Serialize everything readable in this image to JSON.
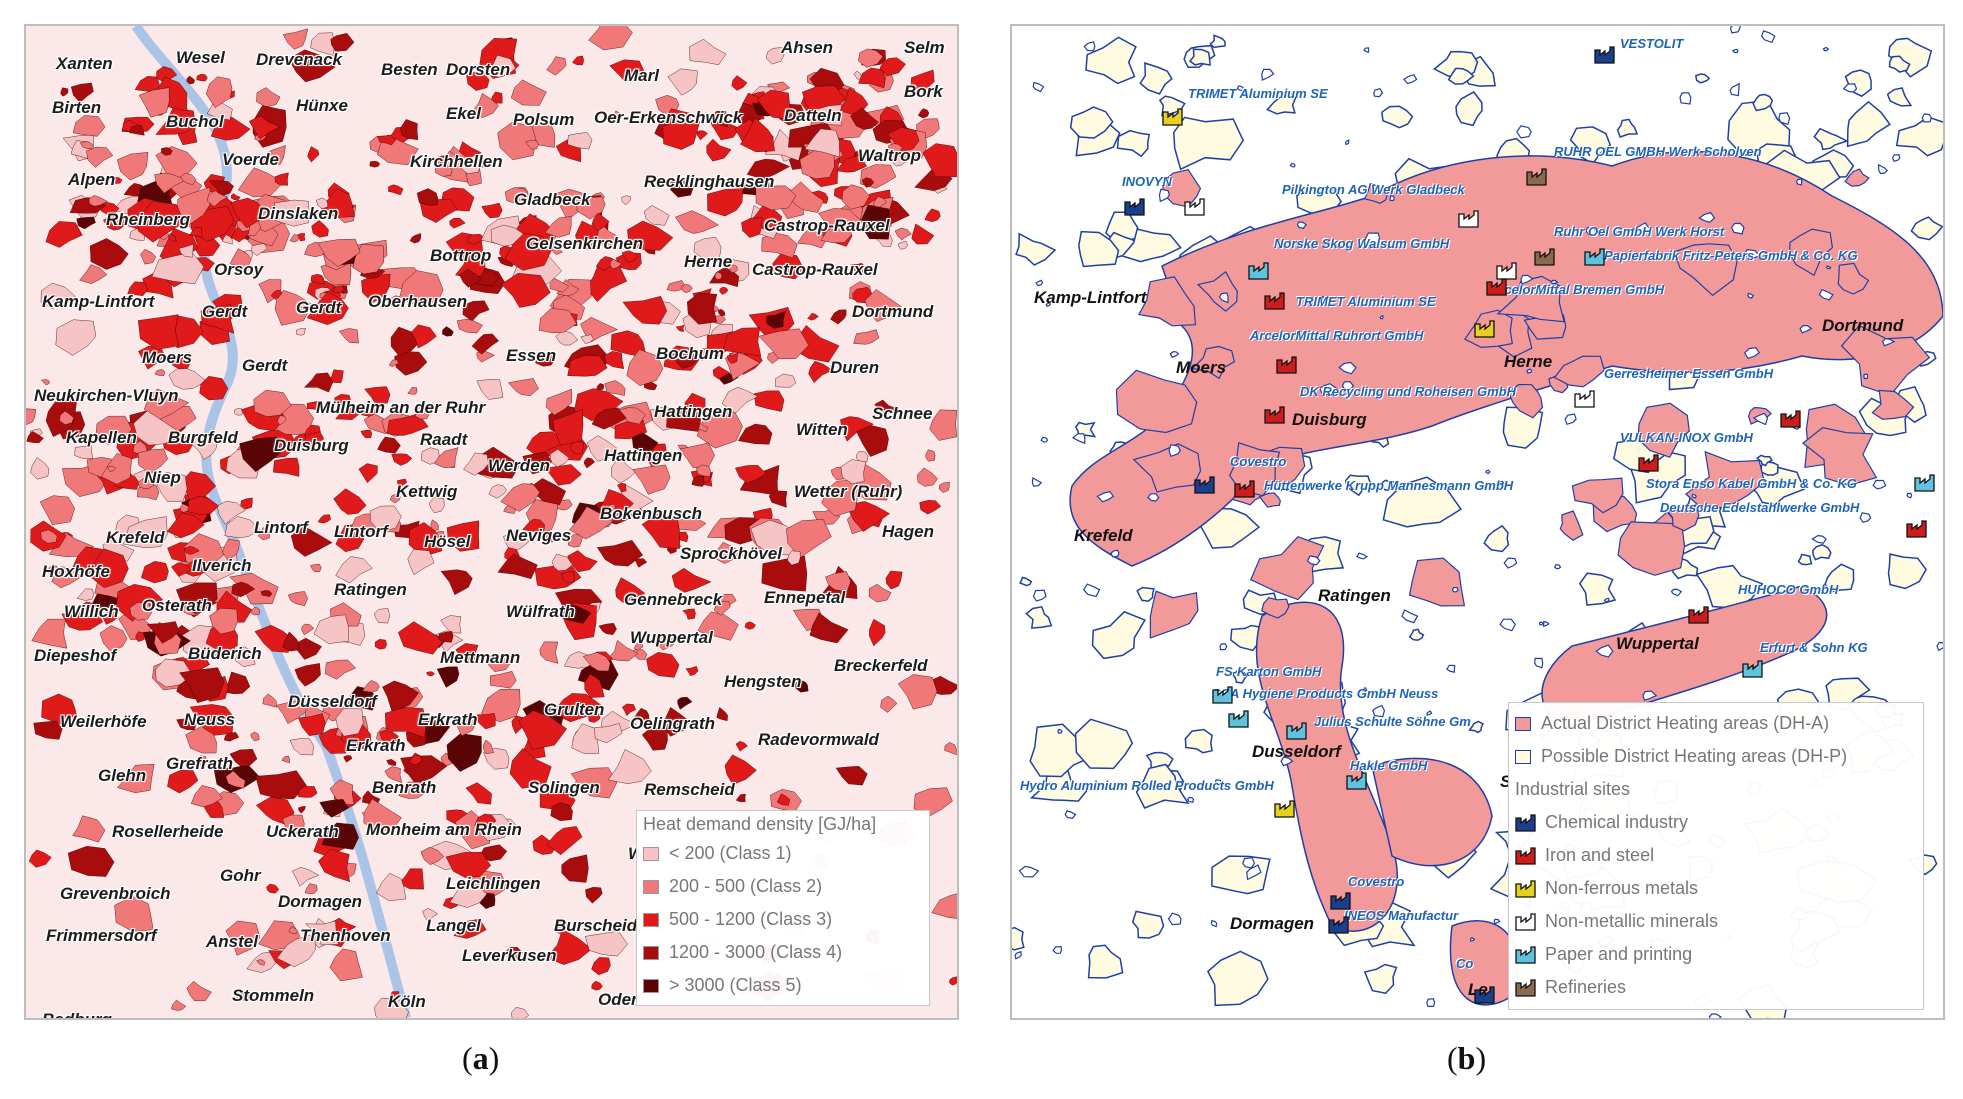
{
  "panel_a": {
    "caption_prefix": "(",
    "caption_letter": "a",
    "caption_suffix": ")",
    "places": [
      [
        "Xanten",
        30,
        28
      ],
      [
        "Wesel",
        150,
        22
      ],
      [
        "Drevenack",
        230,
        24
      ],
      [
        "Besten",
        355,
        34
      ],
      [
        "Dorsten",
        420,
        34
      ],
      [
        "Marl",
        598,
        40
      ],
      [
        "Ahsen",
        755,
        12
      ],
      [
        "Selm",
        878,
        12
      ],
      [
        "Birten",
        26,
        72
      ],
      [
        "Hünxe",
        270,
        70
      ],
      [
        "Ekel",
        420,
        78
      ],
      [
        "Polsum",
        487,
        84
      ],
      [
        "Oer-Erkenschwick",
        568,
        82
      ],
      [
        "Datteln",
        758,
        80
      ],
      [
        "Bork",
        878,
        56
      ],
      [
        "Buchol",
        140,
        86
      ],
      [
        "Voerde",
        196,
        124
      ],
      [
        "Kirchhellen",
        384,
        126
      ],
      [
        "Waltrop",
        832,
        120
      ],
      [
        "Alpen",
        42,
        144
      ],
      [
        "Gladbeck",
        488,
        164
      ],
      [
        "Recklinghausen",
        618,
        146
      ],
      [
        "Dinslaken",
        232,
        178
      ],
      [
        "Rheinberg",
        80,
        184
      ],
      [
        "Gelsenkirchen",
        500,
        208
      ],
      [
        "Castrop-Rauxel",
        738,
        190
      ],
      [
        "Bottrop",
        404,
        220
      ],
      [
        "Herne",
        658,
        226
      ],
      [
        "Castrop-Rauxel",
        726,
        234
      ],
      [
        "Orsoy",
        188,
        234
      ],
      [
        "Kamp-Lintfort",
        16,
        266
      ],
      [
        "Gerdt",
        176,
        276
      ],
      [
        "Gerdt",
        270,
        272
      ],
      [
        "Oberhausen",
        342,
        266
      ],
      [
        "Dortmund",
        826,
        276
      ],
      [
        "Moers",
        116,
        322
      ],
      [
        "Gerdt",
        216,
        330
      ],
      [
        "Essen",
        480,
        320
      ],
      [
        "Bochum",
        630,
        318
      ],
      [
        "Duren",
        804,
        332
      ],
      [
        "Neukirchen-Vluyn",
        8,
        360
      ],
      [
        "Mülheim an der Ruhr",
        290,
        372
      ],
      [
        "Hattingen",
        628,
        376
      ],
      [
        "Schnee",
        846,
        378
      ],
      [
        "Kapellen",
        40,
        402
      ],
      [
        "Burgfeld",
        142,
        402
      ],
      [
        "Raadt",
        394,
        404
      ],
      [
        "Witten",
        770,
        394
      ],
      [
        "Niep",
        118,
        442
      ],
      [
        "Duisburg",
        248,
        410
      ],
      [
        "Werden",
        462,
        430
      ],
      [
        "Hattingen",
        578,
        420
      ],
      [
        "Kettwig",
        370,
        456
      ],
      [
        "Wetter (Ruhr)",
        768,
        456
      ],
      [
        "Bokenbusch",
        574,
        478
      ],
      [
        "Krefeld",
        80,
        502
      ],
      [
        "Lintorf",
        228,
        492
      ],
      [
        "Lintorf",
        308,
        496
      ],
      [
        "Hösel",
        398,
        506
      ],
      [
        "Neviges",
        480,
        500
      ],
      [
        "Hagen",
        856,
        496
      ],
      [
        "Hoxhöfe",
        16,
        536
      ],
      [
        "Ilverich",
        166,
        530
      ],
      [
        "Sprockhövel",
        654,
        518
      ],
      [
        "Willich",
        38,
        576
      ],
      [
        "Osterath",
        116,
        570
      ],
      [
        "Ratingen",
        308,
        554
      ],
      [
        "Gennebreck",
        598,
        564
      ],
      [
        "Ennepetal",
        738,
        562
      ],
      [
        "Wülfrath",
        480,
        576
      ],
      [
        "Diepeshof",
        8,
        620
      ],
      [
        "Büderich",
        162,
        618
      ],
      [
        "Wuppertal",
        604,
        602
      ],
      [
        "Mettmann",
        414,
        622
      ],
      [
        "Breckerfeld",
        808,
        630
      ],
      [
        "Hengsten",
        698,
        646
      ],
      [
        "Weilerhöfe",
        34,
        686
      ],
      [
        "Neuss",
        158,
        684
      ],
      [
        "Düsseldorf",
        262,
        666
      ],
      [
        "Erkrath",
        392,
        684
      ],
      [
        "Grulten",
        518,
        674
      ],
      [
        "Oelingrath",
        604,
        688
      ],
      [
        "Grefrath",
        140,
        728
      ],
      [
        "Erkrath",
        320,
        710
      ],
      [
        "Radevormwald",
        732,
        704
      ],
      [
        "Glehn",
        72,
        740
      ],
      [
        "Benrath",
        346,
        752
      ],
      [
        "Solingen",
        502,
        752
      ],
      [
        "Remscheid",
        618,
        754
      ],
      [
        "Rosellerheide",
        86,
        796
      ],
      [
        "Uckerath",
        240,
        796
      ],
      [
        "Monheim am Rhein",
        340,
        794
      ],
      [
        "Wer",
        602,
        818
      ],
      [
        "Gohr",
        194,
        840
      ],
      [
        "Leichlingen",
        420,
        848
      ],
      [
        "Grevenbroich",
        34,
        858
      ],
      [
        "Dormagen",
        252,
        866
      ],
      [
        "Langel",
        400,
        890
      ],
      [
        "Burscheid",
        528,
        890
      ],
      [
        "Frimmersdorf",
        20,
        900
      ],
      [
        "Anstel",
        180,
        906
      ],
      [
        "Thenhoven",
        274,
        900
      ],
      [
        "Leverkusen",
        436,
        920
      ],
      [
        "Stommeln",
        206,
        960
      ],
      [
        "Köln",
        362,
        966
      ],
      [
        "Oder",
        572,
        964
      ],
      [
        "Bedburg",
        16,
        984
      ]
    ],
    "legend": {
      "title": "Heat demand density [GJ/ha]",
      "items": [
        {
          "label": "< 200 (Class 1)",
          "color": "#f6c4c4"
        },
        {
          "label": "200 - 500 (Class 2)",
          "color": "#f07878"
        },
        {
          "label": "500 - 1200 (Class 3)",
          "color": "#e01a1a"
        },
        {
          "label": "1200 - 3000 (Class 4)",
          "color": "#a80c0c"
        },
        {
          "label": "> 3000 (Class 5)",
          "color": "#5a0505"
        }
      ]
    }
  },
  "panel_b": {
    "caption_prefix": "(",
    "caption_letter": "b",
    "caption_suffix": ")",
    "cities": [
      [
        "Kamp-Lintfort",
        22,
        262
      ],
      [
        "Moers",
        164,
        332
      ],
      [
        "Duisburg",
        280,
        384
      ],
      [
        "Herne",
        492,
        326
      ],
      [
        "Dortmund",
        810,
        290
      ],
      [
        "Krefeld",
        62,
        500
      ],
      [
        "Ratingen",
        306,
        560
      ],
      [
        "Wuppertal",
        604,
        608
      ],
      [
        "Dusseldorf",
        240,
        716
      ],
      [
        "Dormagen",
        218,
        888
      ],
      [
        "S",
        488,
        746
      ],
      [
        "Le",
        456,
        954
      ]
    ],
    "sites": [
      [
        "VESTOLIT",
        608,
        10
      ],
      [
        "TRIMET Aluminium SE",
        176,
        60
      ],
      [
        "RUHR OEL GMBH Werk Scholven",
        542,
        118
      ],
      [
        "INOVYN",
        110,
        148
      ],
      [
        "Pilkington AG Werk Gladbeck",
        270,
        156
      ],
      [
        "Ruhr Oel GmbH Werk Horst",
        542,
        198
      ],
      [
        "Norske Skog Walsum GmbH",
        262,
        210
      ],
      [
        "Papierfabrik Fritz-Peters GmbH & Co. KG",
        592,
        222
      ],
      [
        "ArcelorMittal Bremen GmbH",
        478,
        256
      ],
      [
        "TRIMET Aluminium SE",
        284,
        268
      ],
      [
        "ArcelorMittal Ruhrort GmbH",
        238,
        302
      ],
      [
        "Gerresheimer Essen GmbH",
        592,
        340
      ],
      [
        "DK Recycling und Roheisen GmbH",
        288,
        358
      ],
      [
        "VULKAN-INOX GmbH",
        608,
        404
      ],
      [
        "Covestro",
        218,
        428
      ],
      [
        "Hüttenwerke Krupp Mannesmann GmbH",
        252,
        452
      ],
      [
        "Stora Enso Kabel GmbH & Co. KG",
        634,
        450
      ],
      [
        "Deutsche Edelstahlwerke GmbH",
        648,
        474
      ],
      [
        "HUHOCO GmbH",
        726,
        556
      ],
      [
        "Erfurt & Sohn KG",
        748,
        614
      ],
      [
        "FS-Karton GmbH",
        204,
        638
      ],
      [
        "SCA Hygiene Products GmbH Neuss",
        200,
        660
      ],
      [
        "Julius Schulte Söhne Gm",
        302,
        688
      ],
      [
        "Hakle GmbH",
        338,
        732
      ],
      [
        "Hydro Aluminium Rolled Products GmbH",
        8,
        752
      ],
      [
        "Covestro",
        336,
        848
      ],
      [
        "INEOS Manufactur",
        332,
        882
      ],
      [
        "Co",
        444,
        930
      ]
    ],
    "factories": [
      [
        "#1b3f8f",
        582,
        20
      ],
      [
        "#e8d020",
        150,
        82
      ],
      [
        "#8b6a4f",
        514,
        142
      ],
      [
        "#1b3f8f",
        112,
        172
      ],
      [
        "#ffffff",
        172,
        172
      ],
      [
        "#ffffff",
        446,
        184
      ],
      [
        "#8b6a4f",
        522,
        222
      ],
      [
        "#5fc3e0",
        572,
        222
      ],
      [
        "#ffffff",
        484,
        236
      ],
      [
        "#5fc3e0",
        236,
        236
      ],
      [
        "#cc1c1c",
        474,
        252
      ],
      [
        "#cc1c1c",
        252,
        266
      ],
      [
        "#e8d020",
        462,
        294
      ],
      [
        "#cc1c1c",
        264,
        330
      ],
      [
        "#ffffff",
        562,
        364
      ],
      [
        "#cc1c1c",
        252,
        380
      ],
      [
        "#cc1c1c",
        768,
        384
      ],
      [
        "#cc1c1c",
        626,
        428
      ],
      [
        "#1b3f8f",
        182,
        450
      ],
      [
        "#cc1c1c",
        222,
        454
      ],
      [
        "#5fc3e0",
        902,
        448
      ],
      [
        "#cc1c1c",
        894,
        494
      ],
      [
        "#cc1c1c",
        676,
        580
      ],
      [
        "#5fc3e0",
        730,
        634
      ],
      [
        "#5fc3e0",
        200,
        660
      ],
      [
        "#5fc3e0",
        216,
        684
      ],
      [
        "#5fc3e0",
        274,
        696
      ],
      [
        "#5fc3e0",
        334,
        746
      ],
      [
        "#e8d020",
        262,
        774
      ],
      [
        "#1b3f8f",
        318,
        866
      ],
      [
        "#1b3f8f",
        316,
        890
      ],
      [
        "#1b3f8f",
        462,
        960
      ]
    ],
    "legend": {
      "items": [
        {
          "label": "Actual District Heating areas (DH-A)",
          "kind": "area",
          "color": "#f29a9a"
        },
        {
          "label": "Possible District Heating areas (DH-P)",
          "kind": "area",
          "color": "#fffbe0"
        },
        {
          "label": "Industrial sites",
          "kind": "header",
          "color": ""
        },
        {
          "label": "Chemical industry",
          "kind": "factory",
          "color": "#1b3f8f"
        },
        {
          "label": "Iron and steel",
          "kind": "factory",
          "color": "#cc1c1c"
        },
        {
          "label": "Non-ferrous metals",
          "kind": "factory",
          "color": "#e8d020"
        },
        {
          "label": "Non-metallic minerals",
          "kind": "factory",
          "color": "#ffffff"
        },
        {
          "label": "Paper and printing",
          "kind": "factory",
          "color": "#5fc3e0"
        },
        {
          "label": "Refineries",
          "kind": "factory",
          "color": "#8b6a4f"
        }
      ]
    }
  }
}
